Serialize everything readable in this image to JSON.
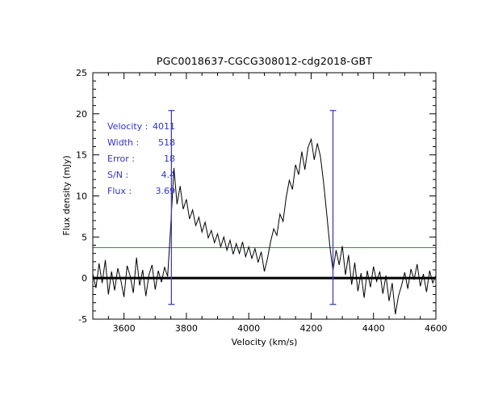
{
  "chart_data": {
    "type": "line",
    "title": "PGC0018637-CGCG308012-cdg2018-GBT",
    "xlabel": "Velocity (km/s)",
    "ylabel": "Flux density (mJy)",
    "xlim": [
      3500,
      4600
    ],
    "ylim": [
      -5,
      25
    ],
    "x_major_ticks": [
      3600,
      3800,
      4000,
      4200,
      4400,
      4600
    ],
    "x_minor_step": 50,
    "y_major_ticks": [
      -5,
      0,
      5,
      10,
      15,
      20,
      25
    ],
    "y_minor_step": 1,
    "grid": false,
    "legend": "none",
    "series": [
      {
        "name": "hi-spectrum",
        "color": "#000000",
        "x": [
          3500,
          3510,
          3520,
          3530,
          3540,
          3550,
          3560,
          3570,
          3580,
          3590,
          3600,
          3610,
          3620,
          3630,
          3640,
          3650,
          3660,
          3670,
          3680,
          3690,
          3700,
          3710,
          3720,
          3730,
          3740,
          3750,
          3760,
          3770,
          3780,
          3790,
          3800,
          3810,
          3820,
          3830,
          3840,
          3850,
          3860,
          3870,
          3880,
          3890,
          3900,
          3910,
          3920,
          3930,
          3940,
          3950,
          3960,
          3970,
          3980,
          3990,
          4000,
          4010,
          4020,
          4030,
          4040,
          4050,
          4060,
          4070,
          4080,
          4090,
          4100,
          4110,
          4120,
          4130,
          4140,
          4150,
          4160,
          4170,
          4180,
          4190,
          4200,
          4210,
          4220,
          4230,
          4240,
          4250,
          4260,
          4270,
          4280,
          4290,
          4300,
          4310,
          4320,
          4330,
          4340,
          4350,
          4360,
          4370,
          4380,
          4390,
          4400,
          4410,
          4420,
          4430,
          4440,
          4450,
          4460,
          4470,
          4480,
          4490,
          4500,
          4510,
          4520,
          4530,
          4540,
          4550,
          4560,
          4570,
          4580,
          4590,
          4600
        ],
        "y": [
          0.5,
          -1.2,
          1.8,
          -0.6,
          2.2,
          -2.0,
          0.8,
          -1.5,
          1.2,
          -0.3,
          -2.3,
          1.5,
          0.2,
          -1.8,
          2.5,
          -0.9,
          1.0,
          -2.2,
          0.4,
          1.6,
          -1.4,
          0.9,
          -0.5,
          1.3,
          0.2,
          6.5,
          13.4,
          9.0,
          11.2,
          8.4,
          9.6,
          7.2,
          8.3,
          6.4,
          7.4,
          5.6,
          6.8,
          4.9,
          5.8,
          4.3,
          5.4,
          3.8,
          5.0,
          3.4,
          4.6,
          2.9,
          4.2,
          3.0,
          4.4,
          2.6,
          3.8,
          2.4,
          3.6,
          1.9,
          3.2,
          0.8,
          2.4,
          4.4,
          6.0,
          5.2,
          7.8,
          6.9,
          9.8,
          11.9,
          10.8,
          13.8,
          12.6,
          15.4,
          13.2,
          15.9,
          16.9,
          14.4,
          16.4,
          14.8,
          11.6,
          7.8,
          3.9,
          0.9,
          3.4,
          1.6,
          3.9,
          0.4,
          2.8,
          -0.8,
          1.9,
          -1.6,
          0.6,
          -2.4,
          0.9,
          -1.1,
          1.4,
          -0.4,
          0.8,
          -1.9,
          0.3,
          -2.8,
          -0.6,
          -4.4,
          -2.2,
          -0.9,
          0.7,
          -1.3,
          1.1,
          -0.2,
          1.7,
          -1.0,
          0.5,
          -1.7,
          0.9,
          -0.6,
          0.3
        ]
      }
    ],
    "reference_lines": [
      {
        "name": "zero-baseline",
        "y": 0,
        "color": "#000000",
        "width": 3
      },
      {
        "name": "flux-threshold-line",
        "y": 3.7,
        "color": "#00b400",
        "width": 1
      }
    ],
    "markers": {
      "name": "velocity-window-marker",
      "x": [
        3752,
        4270
      ],
      "y_bottom": -3.2,
      "y_top": 20.4,
      "color": "#3f3fc0"
    },
    "annotations": {
      "color": "#3232cd",
      "items": [
        {
          "label": "Velocity :",
          "value": "4011"
        },
        {
          "label": "Width :",
          "value": "518"
        },
        {
          "label": "Error :",
          "value": "18"
        },
        {
          "label": "S/N :",
          "value": "4.4"
        },
        {
          "label": "Flux :",
          "value": "3.69"
        }
      ]
    }
  }
}
